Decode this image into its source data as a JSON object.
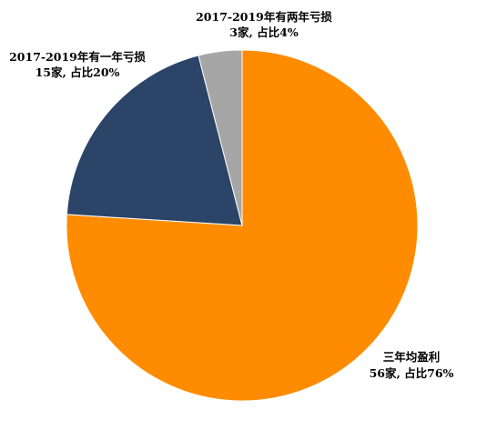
{
  "chart_data": {
    "type": "pie",
    "start_angle_deg": 0,
    "direction": "clockwise",
    "slices": [
      {
        "category": "三年均盈利",
        "count_label": "56家, 占比76%",
        "value": 56,
        "percent": 76,
        "color": "#FF8C00"
      },
      {
        "category": "2017-2019年有一年亏损",
        "count_label": "15家, 占比20%",
        "value": 15,
        "percent": 20,
        "color": "#2B4468"
      },
      {
        "category": "2017-2019年有两年亏损",
        "count_label": "3家, 占比4%",
        "value": 3,
        "percent": 4,
        "color": "#A6A6A6"
      }
    ]
  }
}
